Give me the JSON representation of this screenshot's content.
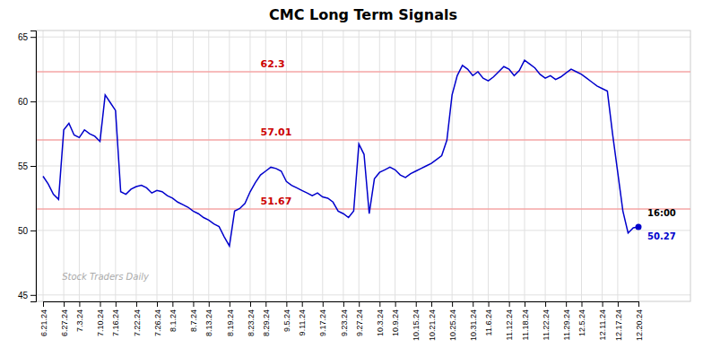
{
  "chart_data": {
    "type": "line",
    "title": "CMC Long Term Signals",
    "categories": [
      "6.21.24",
      null,
      null,
      null,
      "6.27.24",
      null,
      null,
      "7.3.24",
      null,
      null,
      null,
      "7.10.24",
      null,
      null,
      "7.16.24",
      null,
      null,
      null,
      "7.22.24",
      null,
      null,
      null,
      "7.26.24",
      null,
      null,
      "8.1.24",
      null,
      null,
      null,
      "8.7.24",
      null,
      null,
      "8.13.24",
      null,
      null,
      null,
      "8.19.24",
      null,
      null,
      null,
      "8.23.24",
      null,
      null,
      "8.29.24",
      null,
      null,
      null,
      "9.5.24",
      null,
      null,
      "9.11.24",
      null,
      null,
      null,
      "9.17.24",
      null,
      null,
      null,
      "9.23.24",
      null,
      null,
      "9.27.24",
      null,
      null,
      null,
      "10.3.24",
      null,
      null,
      "10.9.24",
      null,
      null,
      null,
      "10.15.24",
      null,
      null,
      "10.21.24",
      null,
      null,
      null,
      "10.25.24",
      null,
      null,
      null,
      "10.31.24",
      null,
      null,
      "11.6.24",
      null,
      null,
      null,
      "11.12.24",
      null,
      null,
      "11.18.24",
      null,
      null,
      null,
      "11.22.24",
      null,
      null,
      null,
      "11.29.24",
      null,
      null,
      "12.5.24",
      null,
      null,
      null,
      "12.11.24",
      null,
      null,
      "12.17.24",
      null,
      null,
      null,
      "12.20.24"
    ],
    "values": [
      54.2,
      53.6,
      52.8,
      52.4,
      57.8,
      58.3,
      57.4,
      57.2,
      57.8,
      57.5,
      57.3,
      56.9,
      60.5,
      59.9,
      59.3,
      53.0,
      52.8,
      53.2,
      53.4,
      53.5,
      53.3,
      52.9,
      53.1,
      53.0,
      52.7,
      52.5,
      52.2,
      52.0,
      51.8,
      51.5,
      51.3,
      51.0,
      50.8,
      50.5,
      50.3,
      49.5,
      48.8,
      51.5,
      51.7,
      52.1,
      53.0,
      53.7,
      54.3,
      54.6,
      54.9,
      54.8,
      54.6,
      53.8,
      53.5,
      53.3,
      53.1,
      52.9,
      52.7,
      52.9,
      52.6,
      52.5,
      52.2,
      51.5,
      51.3,
      51.0,
      51.5,
      56.7,
      55.9,
      51.3,
      54.0,
      54.5,
      54.7,
      54.9,
      54.7,
      54.3,
      54.1,
      54.4,
      54.6,
      54.8,
      55.0,
      55.2,
      55.5,
      55.8,
      57.0,
      60.5,
      62.0,
      62.8,
      62.5,
      62.0,
      62.3,
      61.8,
      61.6,
      61.9,
      62.3,
      62.7,
      62.5,
      62.0,
      62.4,
      63.2,
      62.9,
      62.6,
      62.1,
      61.8,
      62.0,
      61.7,
      61.9,
      62.2,
      62.5,
      62.3,
      62.1,
      61.8,
      61.5,
      61.2,
      61.0,
      60.8,
      57.5,
      54.5,
      51.5,
      49.8,
      50.2,
      50.27
    ],
    "color": "#0000CC",
    "ylim": [
      44.5,
      65.5
    ],
    "yticks": [
      45,
      50,
      55,
      60,
      65
    ],
    "grid": true,
    "reference_lines": [
      {
        "value": 62.3,
        "label": "62.3"
      },
      {
        "value": 57.01,
        "label": "57.01"
      },
      {
        "value": 51.67,
        "label": "51.67"
      }
    ],
    "watermark": "Stock Traders Daily",
    "annotations": [
      "16:00",
      "50.27"
    ]
  }
}
